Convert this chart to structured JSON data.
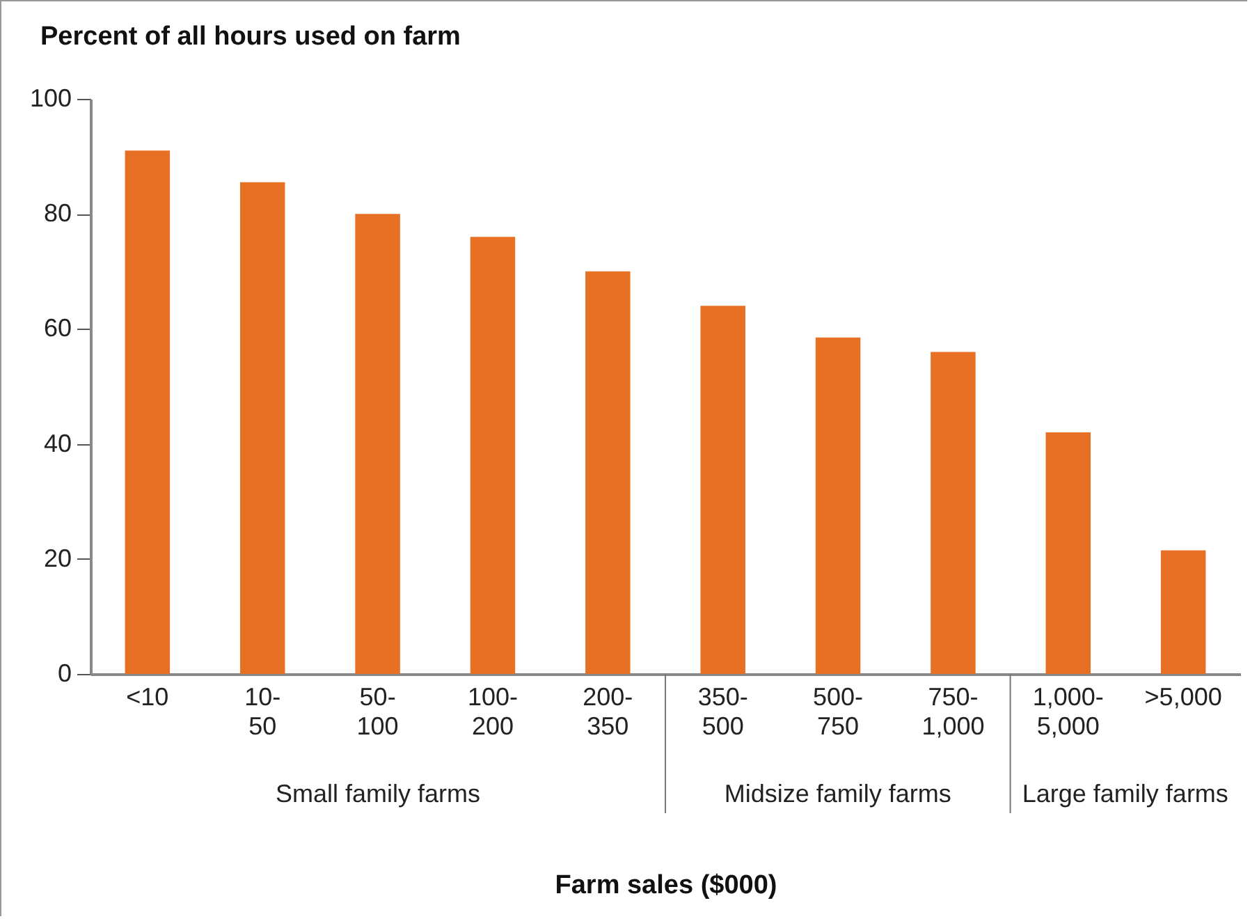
{
  "chart_data": {
    "type": "bar",
    "title": "Percent of all hours used on farm",
    "xlabel": "Farm sales ($000)",
    "categories": [
      "<10",
      "10-50",
      "50-100",
      "100-200",
      "200-350",
      "350-500",
      "500-750",
      "750-1,000",
      "1,000-5,000",
      ">5,000"
    ],
    "values": [
      91,
      85.5,
      80,
      76,
      70,
      64,
      58.5,
      56,
      42,
      21.5
    ],
    "color": "#e87025",
    "ylim": [
      0,
      100
    ],
    "yticks": [
      0,
      20,
      40,
      60,
      80,
      100
    ],
    "grid": false,
    "annotations": [
      "Small family farms",
      "Midsize family farms",
      "Large family farms"
    ]
  }
}
